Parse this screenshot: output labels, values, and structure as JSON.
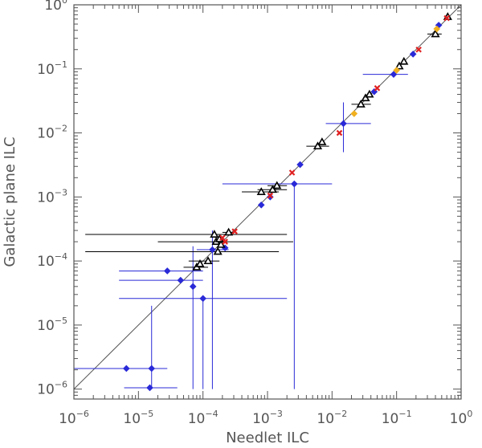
{
  "chart_data": {
    "type": "scatter",
    "title": "",
    "xlabel": "Needlet ILC",
    "ylabel": "Galactic plane ILC",
    "x_scale": "log",
    "y_scale": "log",
    "xlim": [
      1e-06,
      1
    ],
    "ylim": [
      7e-07,
      1
    ],
    "grid": false,
    "legend": "none",
    "x_tick_labels": [
      {
        "value": 1e-06,
        "base": "10",
        "exp": "−6"
      },
      {
        "value": 1e-05,
        "base": "10",
        "exp": "−5"
      },
      {
        "value": 0.0001,
        "base": "10",
        "exp": "−4"
      },
      {
        "value": 0.001,
        "base": "10",
        "exp": "−3"
      },
      {
        "value": 0.01,
        "base": "10",
        "exp": "−2"
      },
      {
        "value": 0.1,
        "base": "10",
        "exp": "−1"
      },
      {
        "value": 1,
        "base": "10",
        "exp": "0"
      }
    ],
    "y_tick_labels": [
      {
        "value": 1e-06,
        "base": "10",
        "exp": "−6"
      },
      {
        "value": 1e-05,
        "base": "10",
        "exp": "−5"
      },
      {
        "value": 0.0001,
        "base": "10",
        "exp": "−4"
      },
      {
        "value": 0.001,
        "base": "10",
        "exp": "−3"
      },
      {
        "value": 0.01,
        "base": "10",
        "exp": "−2"
      },
      {
        "value": 0.1,
        "base": "10",
        "exp": "−1"
      },
      {
        "value": 1,
        "base": "10",
        "exp": "0"
      }
    ],
    "identity_line": {
      "from": [
        1e-06,
        1e-06
      ],
      "to": [
        1,
        1
      ],
      "color": "#555555"
    },
    "series": [
      {
        "marker": "diamond",
        "color": "#2a2ad8",
        "points": [
          {
            "x": 6.5e-06,
            "y": 2.1e-06,
            "xerr": [
              1e-06,
              2.8e-05
            ],
            "yerr": [
              2.1e-06,
              2.1e-06
            ]
          },
          {
            "x": 1.5e-05,
            "y": 1.05e-06,
            "xerr": [
              6e-06,
              4e-05
            ],
            "yerr": [
              1.05e-06,
              1.05e-06
            ]
          },
          {
            "x": 1.6e-05,
            "y": 2.1e-06,
            "xerr": [
              1.6e-05,
              1.6e-05
            ],
            "yerr": [
              1e-06,
              2e-05
            ]
          },
          {
            "x": 2.8e-05,
            "y": 7e-05,
            "xerr": [
              5e-06,
              0.0001
            ],
            "yerr": [
              7e-05,
              7e-05
            ]
          },
          {
            "x": 4.5e-05,
            "y": 5e-05,
            "xerr": [
              5e-06,
              0.0001
            ],
            "yerr": [
              5e-05,
              5e-05
            ]
          },
          {
            "x": 7e-05,
            "y": 4e-05,
            "xerr": [
              7e-05,
              7e-05
            ],
            "yerr": [
              1e-06,
              0.00017
            ]
          },
          {
            "x": 0.0001,
            "y": 2.6e-05,
            "xerr": [
              5e-06,
              0.002
            ],
            "yerr": [
              1e-06,
              2.6e-05
            ]
          },
          {
            "x": 0.00014,
            "y": 0.00015,
            "xerr": [
              8e-05,
              0.00025
            ],
            "yerr": [
              1e-06,
              0.0003
            ]
          },
          {
            "x": 0.00022,
            "y": 0.00016,
            "xerr": [
              0.00022,
              0.00022
            ],
            "yerr": [
              0.00016,
              0.00016
            ]
          },
          {
            "x": 0.0008,
            "y": 0.00075,
            "xerr": [
              0.0008,
              0.0008
            ],
            "yerr": [
              0.00075,
              0.00075
            ]
          },
          {
            "x": 0.0011,
            "y": 0.001,
            "xerr": [
              0.0011,
              0.0011
            ],
            "yerr": [
              0.001,
              0.001
            ]
          },
          {
            "x": 0.0026,
            "y": 0.0016,
            "xerr": [
              0.0002,
              0.01
            ],
            "yerr": [
              1e-06,
              0.0016
            ]
          },
          {
            "x": 0.0032,
            "y": 0.0032,
            "xerr": [
              0.0032,
              0.0032
            ],
            "yerr": [
              0.0032,
              0.0032
            ]
          },
          {
            "x": 0.015,
            "y": 0.014,
            "xerr": [
              0.008,
              0.04
            ],
            "yerr": [
              0.005,
              0.03
            ]
          },
          {
            "x": 0.045,
            "y": 0.044,
            "xerr": [
              0.045,
              0.045
            ],
            "yerr": [
              0.044,
              0.044
            ]
          },
          {
            "x": 0.09,
            "y": 0.082,
            "xerr": [
              0.03,
              0.15
            ],
            "yerr": [
              0.082,
              0.082
            ]
          },
          {
            "x": 0.18,
            "y": 0.17,
            "xerr": [
              0.18,
              0.18
            ],
            "yerr": [
              0.17,
              0.17
            ]
          },
          {
            "x": 0.45,
            "y": 0.48,
            "xerr": [
              0.45,
              0.45
            ],
            "yerr": [
              0.48,
              0.48
            ]
          }
        ]
      },
      {
        "marker": "triangle",
        "color": "#000000",
        "points": [
          {
            "x": 0.00015,
            "y": 0.00026,
            "xerr": [
              1.5e-06,
              0.002
            ],
            "yerr": [
              0.00026,
              0.00026
            ]
          },
          {
            "x": 0.00017,
            "y": 0.00014,
            "xerr": [
              1.5e-06,
              0.0015
            ],
            "yerr": [
              0.00014,
              0.00014
            ]
          },
          {
            "x": 0.00016,
            "y": 0.0002,
            "xerr": [
              2e-05,
              0.0025
            ],
            "yerr": [
              0.0002,
              0.0002
            ]
          },
          {
            "x": 0.00019,
            "y": 0.00018,
            "xerr": [
              0.00019,
              0.00019
            ],
            "yerr": [
              0.00018,
              0.00018
            ]
          },
          {
            "x": 0.00018,
            "y": 0.00022,
            "xerr": [
              0.00018,
              0.00018
            ],
            "yerr": [
              0.00022,
              0.00022
            ]
          },
          {
            "x": 0.00025,
            "y": 0.00028,
            "xerr": [
              0.0002,
              0.0003
            ],
            "yerr": [
              0.00028,
              0.00028
            ]
          },
          {
            "x": 8e-05,
            "y": 8e-05,
            "xerr": [
              5e-05,
              0.00012
            ],
            "yerr": [
              8e-05,
              8e-05
            ]
          },
          {
            "x": 9e-05,
            "y": 9e-05,
            "xerr": [
              9e-05,
              9e-05
            ],
            "yerr": [
              9e-05,
              9e-05
            ]
          },
          {
            "x": 0.00012,
            "y": 0.0001,
            "xerr": [
              6e-05,
              0.00018
            ],
            "yerr": [
              0.0001,
              0.0001
            ]
          },
          {
            "x": 0.0012,
            "y": 0.0013,
            "xerr": [
              0.0007,
              0.002
            ],
            "yerr": [
              0.0013,
              0.0013
            ]
          },
          {
            "x": 0.0014,
            "y": 0.0015,
            "xerr": [
              0.001,
              0.002
            ],
            "yerr": [
              0.0015,
              0.0015
            ]
          },
          {
            "x": 0.0008,
            "y": 0.0012,
            "xerr": [
              0.0004,
              0.0015
            ],
            "yerr": [
              0.0012,
              0.0012
            ]
          },
          {
            "x": 0.006,
            "y": 0.0062,
            "xerr": [
              0.004,
              0.009
            ],
            "yerr": [
              0.0062,
              0.0062
            ]
          },
          {
            "x": 0.007,
            "y": 0.0072,
            "xerr": [
              0.007,
              0.007
            ],
            "yerr": [
              0.0072,
              0.0072
            ]
          },
          {
            "x": 0.028,
            "y": 0.028,
            "xerr": [
              0.02,
              0.04
            ],
            "yerr": [
              0.028,
              0.028
            ]
          },
          {
            "x": 0.033,
            "y": 0.035,
            "xerr": [
              0.033,
              0.033
            ],
            "yerr": [
              0.035,
              0.035
            ]
          },
          {
            "x": 0.038,
            "y": 0.04,
            "xerr": [
              0.038,
              0.038
            ],
            "yerr": [
              0.04,
              0.04
            ]
          },
          {
            "x": 0.11,
            "y": 0.11,
            "xerr": [
              0.11,
              0.11
            ],
            "yerr": [
              0.11,
              0.11
            ]
          },
          {
            "x": 0.13,
            "y": 0.13,
            "xerr": [
              0.13,
              0.13
            ],
            "yerr": [
              0.13,
              0.13
            ]
          },
          {
            "x": 0.4,
            "y": 0.35,
            "xerr": [
              0.3,
              0.5
            ],
            "yerr": [
              0.35,
              0.35
            ]
          },
          {
            "x": 0.62,
            "y": 0.65,
            "xerr": [
              0.62,
              0.62
            ],
            "yerr": [
              0.65,
              0.65
            ]
          }
        ]
      },
      {
        "marker": "cross",
        "color": "#e02020",
        "points": [
          {
            "x": 0.00022,
            "y": 0.0002
          },
          {
            "x": 0.0002,
            "y": 0.00023
          },
          {
            "x": 0.00031,
            "y": 0.00029
          },
          {
            "x": 0.0011,
            "y": 0.00105
          },
          {
            "x": 0.0024,
            "y": 0.0024
          },
          {
            "x": 0.013,
            "y": 0.01
          },
          {
            "x": 0.05,
            "y": 0.05
          },
          {
            "x": 0.22,
            "y": 0.2
          },
          {
            "x": 0.6,
            "y": 0.62
          }
        ]
      },
      {
        "marker": "diamond",
        "color": "#f0b020",
        "points": [
          {
            "x": 0.022,
            "y": 0.02
          },
          {
            "x": 0.1,
            "y": 0.095
          },
          {
            "x": 0.42,
            "y": 0.42
          }
        ]
      }
    ]
  }
}
